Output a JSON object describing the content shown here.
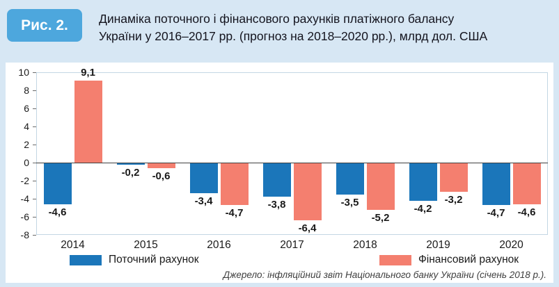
{
  "header": {
    "figure_label": "Рис. 2.",
    "title_lines": [
      "Динаміка поточного і фінансового рахунків платіжного балансу",
      "України у 2016–2017 рр. (прогноз на 2018–2020 рр.), млрд дол. США"
    ]
  },
  "chart_data": {
    "type": "bar",
    "title": "Динаміка поточного і фінансового рахунків платіжного балансу України у 2016–2017 рр. (прогноз на 2018–2020 рр.), млрд дол. США",
    "categories": [
      "2014",
      "2015",
      "2016",
      "2017",
      "2018",
      "2019",
      "2020"
    ],
    "series": [
      {
        "name": "Поточний рахунок",
        "color": "#1b76ba",
        "values": [
          -4.6,
          -0.2,
          -3.4,
          -3.8,
          -3.5,
          -4.2,
          -4.7
        ],
        "labels": [
          "-4,6",
          "-0,2",
          "-3,4",
          "-3,8",
          "-3,5",
          "-4,2",
          "-4,7"
        ]
      },
      {
        "name": "Фінансовий рахунок",
        "color": "#f47f6f",
        "values": [
          9.1,
          -0.6,
          -4.7,
          -6.4,
          -5.2,
          -3.2,
          -4.6
        ],
        "labels": [
          "9,1",
          "-0,6",
          "-4,7",
          "-6,4",
          "-5,2",
          "-3,2",
          "-4,6"
        ]
      }
    ],
    "xlabel": "",
    "ylabel": "",
    "ylim": [
      -8,
      10
    ],
    "yticks": [
      10,
      8,
      6,
      4,
      2,
      0,
      -2,
      -4,
      -6,
      -8
    ],
    "grid": false,
    "legend_position": "bottom"
  },
  "legend": [
    {
      "label": "Поточний рахунок",
      "color": "#1b76ba"
    },
    {
      "label": "Фінансовий рахунок",
      "color": "#f47f6f"
    }
  ],
  "footer": {
    "source": "Джерело: інфляційний звіт Національного банку України (січень 2018 р.)."
  }
}
